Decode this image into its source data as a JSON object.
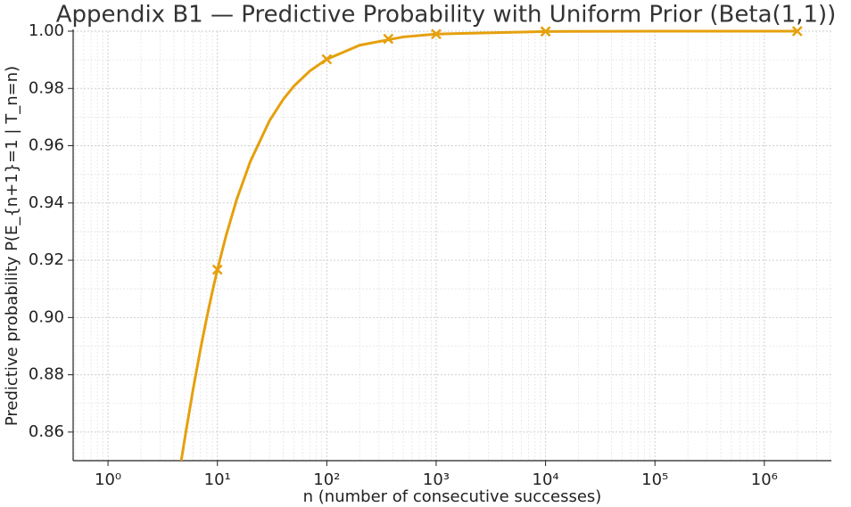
{
  "chart_data": {
    "type": "line",
    "title": "Appendix B1 — Predictive Probability with Uniform Prior (Beta(1,1))",
    "xlabel": "n (number of consecutive successes)",
    "ylabel": "Predictive probability  P(E_{n+1}=1 | T_n=n)",
    "xscale": "log",
    "xlim": [
      0.48,
      4100000
    ],
    "xticks": [
      {
        "value": 1,
        "label": "10⁰"
      },
      {
        "value": 10,
        "label": "10¹"
      },
      {
        "value": 100,
        "label": "10²"
      },
      {
        "value": 1000,
        "label": "10³"
      },
      {
        "value": 10000,
        "label": "10⁴"
      },
      {
        "value": 100000,
        "label": "10⁵"
      },
      {
        "value": 1000000,
        "label": "10⁶"
      }
    ],
    "ylim": [
      0.85,
      1.0
    ],
    "yticks": [
      0.86,
      0.88,
      {
        "value": 0.9,
        "label": "0.90"
      },
      0.92,
      0.94,
      0.96,
      0.98,
      {
        "value": 1.0,
        "label": "1.00"
      }
    ],
    "grid": true,
    "minor_grid": true,
    "series": [
      {
        "color": "#e5a00d",
        "style": "line",
        "x": [
          4.67,
          5,
          6,
          7,
          8,
          9,
          10,
          12,
          15,
          20,
          30,
          40,
          50,
          70,
          100,
          200,
          500,
          1000,
          10000,
          100000,
          2000000
        ],
        "values": [
          0.85,
          0.8571,
          0.875,
          0.8889,
          0.9,
          0.9091,
          0.9167,
          0.9286,
          0.9412,
          0.9545,
          0.9688,
          0.9762,
          0.9808,
          0.9861,
          0.9902,
          0.9951,
          0.998,
          0.999,
          0.9999,
          1.0,
          1.0
        ]
      },
      {
        "color": "#e5a00d",
        "style": "marker",
        "x": [
          10,
          100,
          365,
          1000,
          10000,
          2000000
        ],
        "values": [
          0.9167,
          0.9902,
          0.9973,
          0.999,
          0.9999,
          1.0
        ]
      }
    ]
  }
}
